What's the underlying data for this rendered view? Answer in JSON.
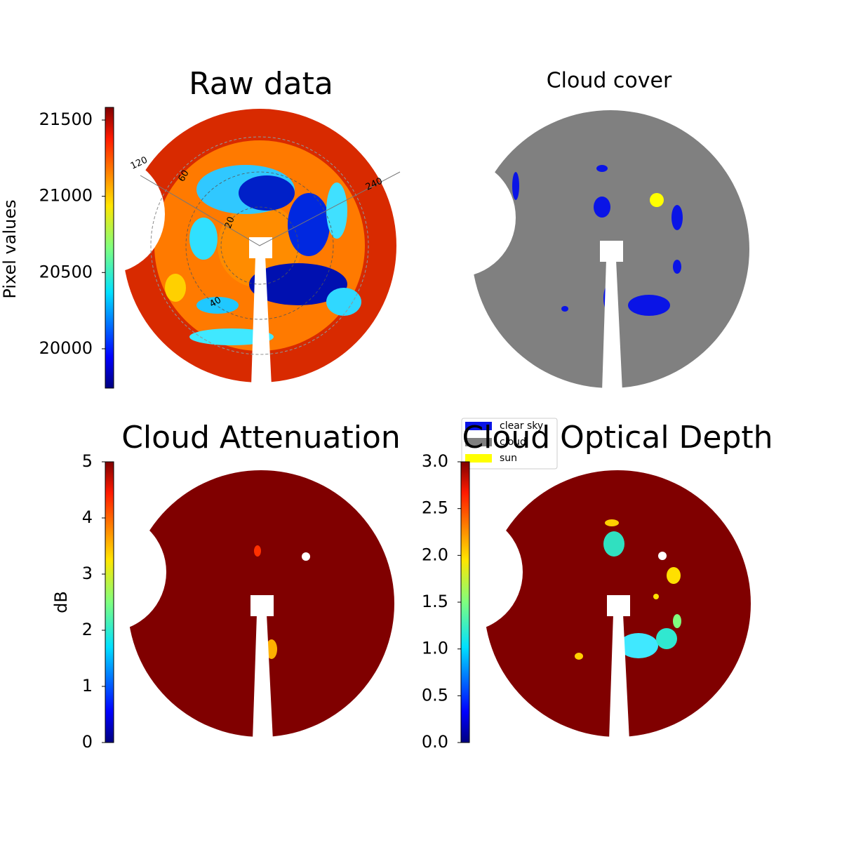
{
  "chart_data": [
    {
      "type": "image",
      "title": "Raw data",
      "colorbar_label": "Pixel values",
      "clim": [
        19742,
        21583
      ],
      "cticks": [
        20000,
        20500,
        21000,
        21500
      ],
      "colormap": "jet",
      "annotations": [
        "120",
        "240",
        "20",
        "40",
        "60"
      ]
    },
    {
      "type": "categorical-image",
      "title": "Cloud cover",
      "series": [
        {
          "name": "clear sky",
          "color": "#0a14e6"
        },
        {
          "name": "cloud",
          "color": "#808080"
        },
        {
          "name": "sun",
          "color": "#ffff00"
        }
      ]
    },
    {
      "type": "image",
      "title": "Cloud Attenuation",
      "colorbar_label": "dB",
      "clim": [
        0,
        5
      ],
      "cticks": [
        0,
        1,
        2,
        3,
        4,
        5
      ],
      "colormap": "jet"
    },
    {
      "type": "image",
      "title": "Cloud Optical Depth",
      "clim": [
        0,
        3
      ],
      "cticks": [
        {
          "value": 0,
          "label": "0.0"
        },
        {
          "value": 0.5,
          "label": "0.5"
        },
        {
          "value": 1,
          "label": "1.0"
        },
        {
          "value": 1.5,
          "label": "1.5"
        },
        {
          "value": 2,
          "label": "2.0"
        },
        {
          "value": 2.5,
          "label": "2.5"
        },
        {
          "value": 3,
          "label": "3.0"
        }
      ],
      "colormap": "jet"
    }
  ]
}
